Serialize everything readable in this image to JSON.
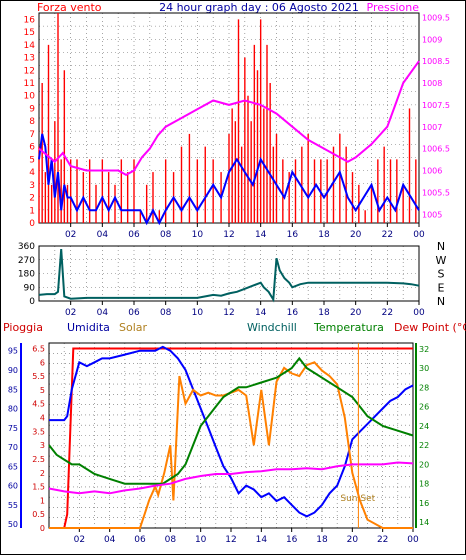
{
  "title": "24 hour graph day : 06 Agosto 2021",
  "x_ticks": [
    "02",
    "04",
    "06",
    "08",
    "10",
    "12",
    "14",
    "16",
    "18",
    "20",
    "22",
    "00"
  ],
  "colors": {
    "red": "#ff0000",
    "blue": "#0000ff",
    "magenta": "#ff00ff",
    "olive": "#b08020",
    "orange": "#ff8000",
    "teal": "#006060",
    "green": "#008000",
    "dark_red": "#d00000",
    "navy": "#0000a0",
    "grid": "#6a6a6a"
  },
  "chart_data": [
    {
      "type": "line",
      "left_label": "Forza vento",
      "right_label": "Pressione",
      "y_ticks": [
        "16",
        "15",
        "14",
        "13",
        "12",
        "11",
        "10",
        "9",
        "8",
        "7",
        "6",
        "5",
        "4",
        "3",
        "2",
        "1",
        "0"
      ],
      "y_range": [
        0,
        16.5
      ],
      "right_ticks": [
        "1009.5",
        "1009",
        "1008.5",
        "1008",
        "1007.5",
        "1007",
        "1006.5",
        "1006",
        "1005.5",
        "1005"
      ],
      "right_range": [
        1004.8,
        1009.6
      ],
      "series": [
        {
          "color": "red",
          "kind": "gust-bars",
          "axis": "left",
          "x": [
            0,
            0.2,
            0.4,
            0.6,
            0.8,
            1,
            1.2,
            1.4,
            1.6,
            1.8,
            2,
            2.4,
            2.8,
            3.2,
            3.6,
            4,
            4.4,
            4.8,
            5.2,
            5.6,
            6,
            6.4,
            6.8,
            7.2,
            7.6,
            8,
            8.5,
            9,
            9.5,
            10,
            10.5,
            11,
            11.5,
            12,
            12.2,
            12.4,
            12.6,
            12.8,
            13,
            13.2,
            13.4,
            13.6,
            13.8,
            14,
            14.2,
            14.4,
            14.6,
            14.8,
            15,
            15.4,
            15.8,
            16.2,
            16.6,
            17,
            17.4,
            17.8,
            18.2,
            18.6,
            19,
            19.4,
            19.8,
            20.2,
            20.6,
            21,
            21.4,
            21.8,
            22.2,
            22.6,
            23,
            23.4,
            23.8,
            24
          ],
          "values": [
            6,
            11,
            4,
            14,
            3,
            8,
            16.5,
            5,
            12,
            3,
            5,
            5,
            4,
            5,
            3,
            5,
            4,
            3,
            5,
            4,
            5,
            1,
            3,
            4,
            1,
            5,
            4,
            6,
            7,
            5,
            6,
            5,
            4,
            7,
            9,
            8,
            16,
            6,
            13,
            10,
            8,
            14,
            12,
            16,
            9,
            14,
            11,
            6,
            7,
            5,
            4,
            5,
            6,
            7,
            5,
            5,
            5,
            6,
            7,
            6,
            4,
            3,
            1,
            3,
            5,
            6,
            5,
            5,
            3,
            9,
            5,
            0
          ]
        },
        {
          "color": "blue",
          "kind": "line",
          "axis": "left",
          "x": [
            0,
            0.2,
            0.4,
            0.6,
            0.8,
            1,
            1.2,
            1.4,
            1.6,
            1.8,
            2,
            2.4,
            2.8,
            3.2,
            3.6,
            4,
            4.4,
            4.8,
            5.2,
            5.6,
            6,
            6.4,
            6.8,
            7.2,
            7.6,
            8,
            8.5,
            9,
            9.5,
            10,
            10.5,
            11,
            11.5,
            12,
            12.5,
            13,
            13.5,
            14,
            14.5,
            15,
            15.5,
            16,
            16.5,
            17,
            17.5,
            18,
            18.5,
            19,
            19.5,
            20,
            20.5,
            21,
            21.5,
            22,
            22.5,
            23,
            23.5,
            24
          ],
          "values": [
            5,
            7,
            6,
            3,
            5,
            2,
            4,
            1,
            3,
            2,
            2,
            1,
            2,
            1,
            1,
            2,
            1,
            2,
            1,
            1,
            1,
            1,
            0,
            1,
            0,
            1,
            2,
            1,
            2,
            1,
            2,
            3,
            2,
            4,
            5,
            4,
            3,
            5,
            4,
            3,
            2,
            4,
            3,
            2,
            3,
            2,
            3,
            4,
            2,
            1,
            2,
            3,
            1,
            2,
            1,
            3,
            2,
            1
          ]
        },
        {
          "color": "magenta",
          "kind": "line",
          "axis": "right",
          "x": [
            0,
            1,
            1.5,
            2,
            3,
            4,
            5,
            5.5,
            6,
            6.5,
            7,
            7.5,
            8,
            9,
            10,
            11,
            12,
            13,
            14,
            15,
            16,
            17,
            18,
            19,
            19.5,
            20,
            21,
            22,
            22.5,
            23,
            24
          ],
          "values": [
            1006.5,
            1006.2,
            1006.4,
            1006.1,
            1006,
            1006,
            1006,
            1005.9,
            1006,
            1006.3,
            1006.5,
            1006.8,
            1007,
            1007.2,
            1007.4,
            1007.6,
            1007.5,
            1007.6,
            1007.5,
            1007.3,
            1007,
            1006.7,
            1006.5,
            1006.3,
            1006.2,
            1006.3,
            1006.6,
            1007,
            1007.5,
            1008,
            1008.5
          ]
        }
      ]
    },
    {
      "type": "line",
      "y_ticks": [
        "360",
        "270",
        "180",
        "90",
        "0"
      ],
      "y_range": [
        0,
        360
      ],
      "right_ticks": [
        "N",
        "W",
        "S",
        "E",
        "N"
      ],
      "series": [
        {
          "color": "teal",
          "kind": "line",
          "x": [
            0,
            0.5,
            1,
            1.2,
            1.4,
            1.6,
            2,
            3,
            4,
            5,
            6,
            7,
            8,
            9,
            10,
            10.5,
            11,
            11.5,
            12,
            12.5,
            13,
            13.5,
            14,
            14.2,
            14.5,
            14.8,
            15,
            15.2,
            15.5,
            15.8,
            16,
            16.5,
            17,
            18,
            19,
            20,
            21,
            22,
            23,
            23.5,
            24
          ],
          "values": [
            40,
            45,
            45,
            60,
            340,
            30,
            15,
            20,
            20,
            20,
            20,
            20,
            20,
            20,
            20,
            30,
            40,
            35,
            50,
            60,
            80,
            100,
            120,
            90,
            60,
            10,
            280,
            200,
            150,
            120,
            90,
            110,
            120,
            120,
            120,
            120,
            120,
            120,
            115,
            110,
            100
          ]
        }
      ]
    },
    {
      "type": "line",
      "labels": [
        "Pioggia",
        "Umidita",
        "Solar",
        "Windchill",
        "Temperatura",
        "Dew Point (°C)"
      ],
      "left_ticks": [
        "95",
        "90",
        "85",
        "80",
        "75",
        "70",
        "65",
        "60",
        "55",
        "50"
      ],
      "left_range": [
        49,
        97
      ],
      "rain_ticks": [
        "6.5",
        "6",
        "5.5",
        "5",
        "4.5",
        "4",
        "3.5",
        "3",
        "2.5",
        "2",
        "1.5",
        "1",
        "0.5",
        "0"
      ],
      "rain_range": [
        0,
        6.7
      ],
      "right_ticks": [
        "32",
        "30",
        "28",
        "26",
        "24",
        "22",
        "20",
        "18",
        "16",
        "14"
      ],
      "right_range": [
        13.4,
        32.6
      ],
      "sunset_label": "Sun Set",
      "series": [
        {
          "color": "red",
          "name": "Pioggia",
          "axis": "rain",
          "x": [
            0,
            1,
            1.2,
            1.6,
            2,
            4,
            8,
            10,
            12,
            14,
            16,
            18,
            20,
            22,
            24
          ],
          "values": [
            0,
            0,
            0.5,
            6.5,
            6.5,
            6.5,
            6.5,
            6.5,
            6.5,
            6.5,
            6.5,
            6.5,
            6.5,
            6.5,
            6.5
          ]
        },
        {
          "color": "blue",
          "name": "Umidita",
          "axis": "left",
          "x": [
            0,
            1,
            1.2,
            1.5,
            2,
            2.5,
            3,
            3.5,
            4,
            5,
            6,
            7,
            7.5,
            8,
            8.5,
            9,
            9.5,
            10,
            10.5,
            11,
            11.5,
            12,
            12.5,
            13,
            13.5,
            14,
            14.5,
            15,
            15.5,
            16,
            16.5,
            17,
            17.5,
            18,
            18.5,
            19,
            19.5,
            20,
            20.5,
            21,
            21.5,
            22,
            22.5,
            23,
            23.5,
            24
          ],
          "values": [
            77,
            77,
            78,
            85,
            92,
            91,
            92,
            93,
            93,
            94,
            95,
            95,
            96,
            95,
            93,
            90,
            85,
            80,
            75,
            70,
            65,
            62,
            58,
            60,
            59,
            57,
            58,
            56,
            57,
            55,
            53,
            52,
            53,
            55,
            58,
            60,
            65,
            72,
            74,
            76,
            78,
            80,
            82,
            83,
            85,
            86
          ]
        },
        {
          "color": "orange",
          "name": "Solar",
          "axis": "rain",
          "x": [
            0,
            1,
            2,
            3,
            4,
            5,
            6,
            6.3,
            6.6,
            7,
            7.2,
            7.6,
            8,
            8.2,
            8.6,
            9,
            9.5,
            10,
            10.5,
            11,
            11.5,
            12,
            12.5,
            13,
            13.5,
            14,
            14.5,
            15,
            15.5,
            16,
            16.5,
            17,
            17.5,
            18,
            18.5,
            19,
            19.5,
            20,
            20.5,
            21,
            22,
            23,
            24
          ],
          "values": [
            0,
            0,
            0,
            0,
            0,
            0,
            0,
            0.5,
            1,
            1.5,
            1.2,
            2,
            3,
            1,
            5.5,
            4.5,
            5,
            4.8,
            4.9,
            4.8,
            4.8,
            4.9,
            5,
            4.8,
            3,
            5,
            3,
            5.3,
            5.8,
            5.6,
            5.5,
            5.9,
            6,
            5.7,
            5.5,
            5.2,
            4,
            2,
            1,
            0.3,
            0,
            0,
            0
          ]
        },
        {
          "color": "green",
          "name": "Temperatura",
          "axis": "right",
          "x": [
            0,
            0.5,
            1,
            1.5,
            2,
            3,
            4,
            5,
            6,
            7,
            7.5,
            8,
            8.5,
            9,
            9.5,
            10,
            10.5,
            11,
            11.5,
            12,
            12.5,
            13,
            14,
            15,
            16,
            16.5,
            17,
            17.5,
            18,
            19,
            20,
            20.5,
            21,
            22,
            23,
            24
          ],
          "values": [
            22,
            21,
            20.5,
            20,
            20,
            19,
            18.5,
            18,
            18,
            18,
            18,
            18.5,
            19,
            20,
            22,
            24,
            25,
            26,
            27,
            27.5,
            28,
            28,
            28.5,
            29,
            30,
            31,
            30,
            29.5,
            29,
            28,
            27,
            26,
            25,
            24,
            23.5,
            23
          ]
        },
        {
          "color": "magenta",
          "name": "Dew Point",
          "axis": "right",
          "x": [
            0,
            1,
            2,
            3,
            4,
            5,
            6,
            7,
            8,
            9,
            10,
            11,
            12,
            13,
            14,
            15,
            16,
            17,
            18,
            19,
            20,
            21,
            22,
            23,
            24
          ],
          "values": [
            17.5,
            17.2,
            17,
            17.2,
            17,
            17.3,
            17.5,
            17.8,
            18,
            18.5,
            18.8,
            19,
            19,
            19.2,
            19.3,
            19.5,
            19.5,
            19.6,
            19.5,
            19.8,
            20,
            20,
            20,
            20.2,
            20.1
          ]
        }
      ]
    }
  ]
}
